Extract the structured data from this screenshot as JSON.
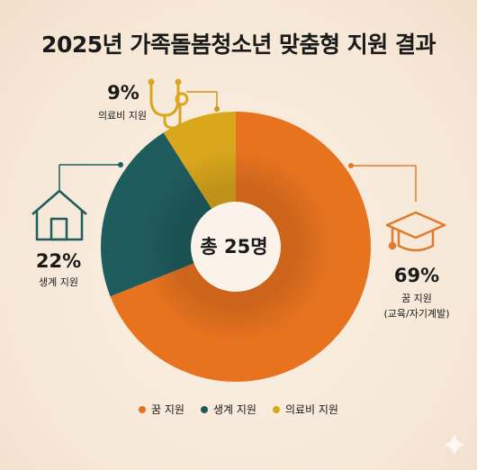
{
  "title": "2025년 가족돌봄청소년 맞춤형 지원 결과",
  "center_label": "총 25명",
  "colors": {
    "dream": "#e8731f",
    "living": "#1f5c5e",
    "medical": "#d9a61c",
    "line_orange": "#e07a2c",
    "line_teal": "#1f5c5e",
    "line_gold": "#c9961a"
  },
  "icons": [
    "house-icon",
    "stethoscope-icon",
    "graduation-cap-icon"
  ],
  "chart_data": {
    "type": "pie",
    "title": "2025년 가족돌봄청소년 맞춤형 지원 결과",
    "total_label": "총 25명",
    "slices": [
      {
        "label": "꿈 지원",
        "value": 69,
        "display": "69%",
        "sublabel": "(교육/자기계발)",
        "color": "#e8731f"
      },
      {
        "label": "생계 지원",
        "value": 22,
        "display": "22%",
        "sublabel": "",
        "color": "#1f5c5e"
      },
      {
        "label": "의료비 지원",
        "value": 9,
        "display": "9%",
        "sublabel": "",
        "color": "#d9a61c"
      }
    ],
    "legend": [
      "꿈 지원",
      "생계 지원",
      "의료비 지원"
    ],
    "legend_position": "bottom-center"
  }
}
